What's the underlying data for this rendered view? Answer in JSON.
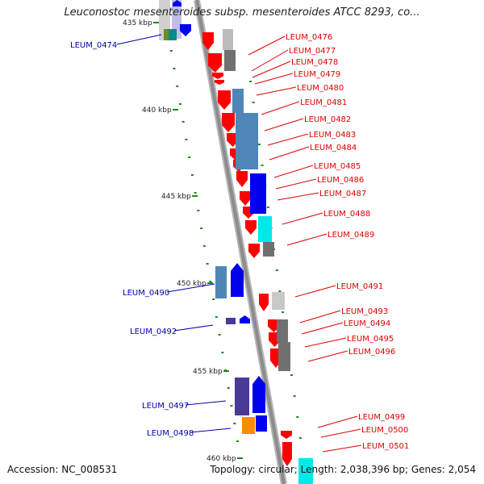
{
  "title": "Leuconostoc mesenteroides subsp. mesenteroides ATCC 8293, co...",
  "footer": {
    "accession": "Accession: NC_008531",
    "summary": "Topology: circular; Length: 2,038,396 bp; Genes: 2,054"
  },
  "colors": {
    "backbone": "#8c8c8c",
    "red": "#ff0000",
    "steelblue": "#4f86b8",
    "blue": "#0000ee",
    "slateblue": "#4a3a96",
    "cyan": "#00e8e8",
    "darkgray": "#707070",
    "lightgray": "#c8c8c8",
    "orange": "#ff8c00",
    "tick": "#1a8a1a",
    "label_red": "#dd0000",
    "label_blue": "#0000aa"
  },
  "scale_labels": [
    "435 kbp",
    "440 kbp",
    "445 kbp",
    "450 kbp",
    "455 kbp",
    "460 kbp"
  ],
  "gene_labels_right": [
    "LEUM_0476",
    "LEUM_0477",
    "LEUM_0478",
    "LEUM_0479",
    "LEUM_0480",
    "LEUM_0481",
    "LEUM_0482",
    "LEUM_0483",
    "LEUM_0484",
    "LEUM_0485",
    "LEUM_0486",
    "LEUM_0487",
    "LEUM_0488",
    "LEUM_0489",
    "LEUM_0491",
    "LEUM_0493",
    "LEUM_0494",
    "LEUM_0495",
    "LEUM_0496",
    "LEUM_0499",
    "LEUM_0500",
    "LEUM_0501"
  ],
  "gene_labels_left": [
    "LEUM_0474",
    "LEUM_0490",
    "LEUM_0492",
    "LEUM_0497",
    "LEUM_0498"
  ]
}
